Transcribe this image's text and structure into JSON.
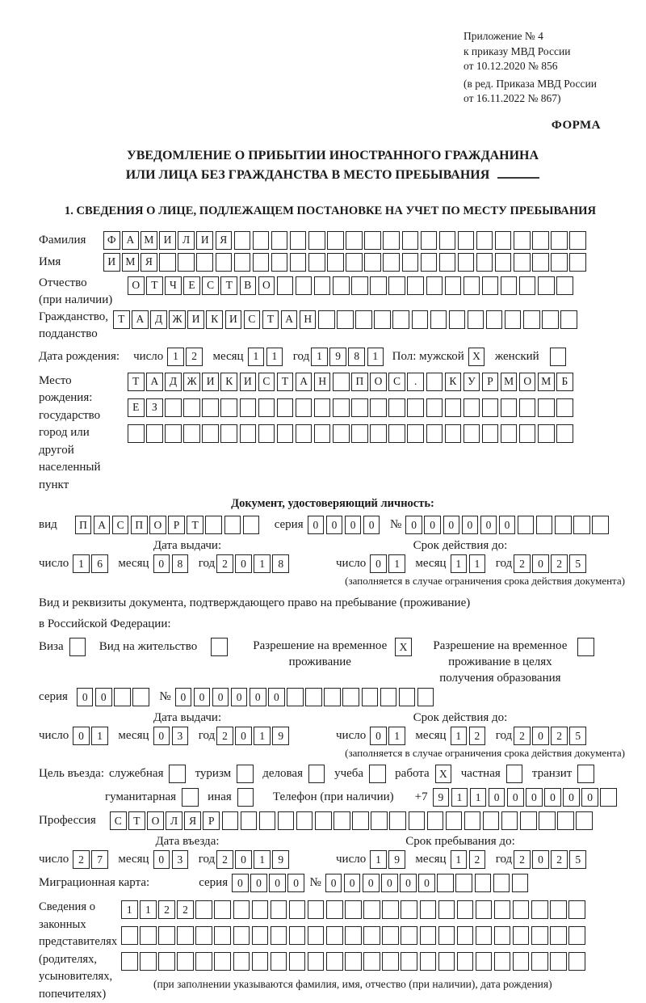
{
  "header": {
    "lines": [
      "Приложение № 4",
      "к приказу МВД России",
      "от 10.12.2020 № 856"
    ],
    "lines2": [
      "(в ред. Приказа МВД России",
      "от 16.11.2022 № 867)"
    ],
    "forma": "ФОРМА"
  },
  "title": {
    "line1": "УВЕДОМЛЕНИЕ О ПРИБЫТИИ ИНОСТРАННОГО ГРАЖДАНИНА",
    "line2": "ИЛИ ЛИЦА БЕЗ ГРАЖДАНСТВА В МЕСТО ПРЕБЫВАНИЯ"
  },
  "section1_heading": "1. СВЕДЕНИЯ О ЛИЦЕ, ПОДЛЕЖАЩЕМ ПОСТАНОВКЕ НА УЧЕТ ПО МЕСТУ ПРЕБЫВАНИЯ",
  "date_labels": {
    "day": "число",
    "month": "месяц",
    "year": "год"
  },
  "person": {
    "lastname_label": "Фамилия",
    "lastname_row": {
      "cells": "ФАМИЛИЯ",
      "count": 26
    },
    "firstname_label": "Имя",
    "firstname_row": {
      "cells": "ИМЯ",
      "count": 26
    },
    "middlename_label": "Отчество",
    "middlename_label2": "(при наличии)",
    "middlename_row": {
      "cells": "ОТЧЕСТВО",
      "count": 24
    },
    "citizenship_label": "Гражданство,",
    "citizenship_label2": "подданство",
    "citizenship_row": {
      "cells": "ТАДЖИКИСТАН",
      "count": 25
    },
    "birthdate_label": "Дата рождения:",
    "birth_day": "12",
    "birth_month": "11",
    "birth_year": "1981",
    "sex_label": "Пол: мужской",
    "sex_male": "X",
    "sex_female_label": "женский",
    "sex_female": " ",
    "birthplace_labels": [
      "Место рождения:",
      "государство",
      "город или другой",
      "населенный пункт"
    ],
    "birthplace_row1": {
      "cells": "ТАДЖИКИСТАН ПОС. КУРМОМБ",
      "count": 24
    },
    "birthplace_row2": {
      "cells": "ЕЗ",
      "count": 24
    },
    "birthplace_row3": {
      "cells": "",
      "count": 24
    }
  },
  "identity_doc": {
    "heading": "Документ, удостоверяющий личность:",
    "vid_label": "вид",
    "vid_row": {
      "cells": "ПАСПОРТ",
      "count": 10
    },
    "seriya_label": "серия",
    "seriya": "0000",
    "num_label": "№",
    "num": "000000     ",
    "issue_header": "Дата выдачи:",
    "issue_day": "16",
    "issue_month": "08",
    "issue_year": "2018",
    "valid_header": "Срок действия до:",
    "valid_day": "01",
    "valid_month": "11",
    "valid_year": "2025",
    "note": "(заполняется в случае ограничения срока действия документа)"
  },
  "residence_doc": {
    "intro1": "Вид и реквизиты документа, подтверждающего право на пребывание (проживание)",
    "intro2": "в Российской Федерации:",
    "visa_label": "Виза",
    "visa": " ",
    "permit_label": "Вид на жительство",
    "permit": " ",
    "temp_label": "Разрешение на временное проживание",
    "temp": "X",
    "temp_edu_label": "Разрешение на временное проживание в целях получения образования",
    "temp_edu": " ",
    "seriya_label": "серия",
    "seriya": "00  ",
    "num_label": "№",
    "num": "000000        ",
    "issue_header": "Дата выдачи:",
    "issue_day": "01",
    "issue_month": "03",
    "issue_year": "2019",
    "valid_header": "Срок действия до:",
    "valid_day": "01",
    "valid_month": "12",
    "valid_year": "2025",
    "note": "(заполняется в случае ограничения срока действия документа)"
  },
  "entry": {
    "purpose_label": "Цель въезда:",
    "options": [
      {
        "label": "служебная",
        "value": " "
      },
      {
        "label": "туризм",
        "value": " "
      },
      {
        "label": "деловая",
        "value": " "
      },
      {
        "label": "учеба",
        "value": " "
      },
      {
        "label": "работа",
        "value": "X"
      },
      {
        "label": "частная",
        "value": " "
      },
      {
        "label": "транзит",
        "value": " "
      }
    ],
    "options2": [
      {
        "label": "гуманитарная",
        "value": " "
      },
      {
        "label": "иная",
        "value": " "
      }
    ],
    "phone_label": "Телефон (при наличии)",
    "phone_prefix": "+7",
    "phone_digits": "911000000 ",
    "profession_label": "Профессия",
    "profession_row": {
      "cells": "СТОЛЯР",
      "count": 26
    },
    "entry_date_header": "Дата въезда:",
    "entry_day": "27",
    "entry_month": "03",
    "entry_year": "2019",
    "stay_header": "Срок пребывания до:",
    "stay_day": "19",
    "stay_month": "12",
    "stay_year": "2025"
  },
  "migration_card": {
    "label": "Миграционная карта:",
    "seriya_label": "серия",
    "seriya": "0000",
    "num_label": "№",
    "num": "000000     "
  },
  "representatives": {
    "labels": [
      "Сведения о",
      "законных",
      "представителях",
      "(родителях,",
      "усыновителях,",
      "попечителях)"
    ],
    "row1": {
      "cells": "1122",
      "count": 25
    },
    "row2": {
      "cells": "",
      "count": 25
    },
    "row3": {
      "cells": "",
      "count": 25
    },
    "note": "(при заполнении указываются фамилия, имя, отчество (при наличии), дата рождения)"
  }
}
